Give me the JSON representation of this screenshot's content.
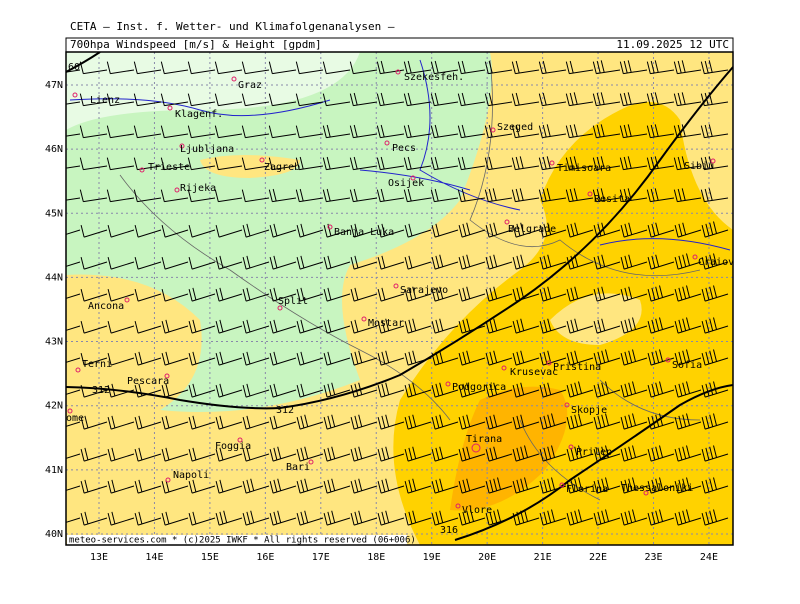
{
  "header": {
    "institute": "CETA — Inst. f. Wetter- und Klimafolgenanalysen —",
    "field": "700hpa Windspeed [m/s] & Height [gpdm]",
    "valid": "11.09.2025 12 UTC"
  },
  "lat_labels": [
    "47N",
    "46N",
    "45N",
    "44N",
    "43N",
    "42N",
    "41N",
    "40N"
  ],
  "lon_labels": [
    "13E",
    "14E",
    "15E",
    "16E",
    "17E",
    "18E",
    "19E",
    "20E",
    "21E",
    "22E",
    "23E",
    "24E"
  ],
  "contour_labels": [
    "60",
    "312",
    "312",
    "316"
  ],
  "cities": [
    "Lienz",
    "Graz",
    "Szekesfeh.",
    "Klagenf.",
    "Szeged",
    "Ljubljana",
    "Pecs",
    "Trieste",
    "Zagreb",
    "Timisoara",
    "Sibiu",
    "Osijek",
    "Rijeka",
    "Resita",
    "Banja Luka",
    "Belgrade",
    "Craiova",
    "Sarajevo",
    "Ancona",
    "Split",
    "Mostar",
    "Pristina",
    "Sofia",
    "Terni",
    "Krusevac",
    "Pescara",
    "Podgorica",
    "Skopje",
    "Rome",
    "Tirana",
    "Foggia",
    "Prilep",
    "Bari",
    "Napoli",
    "Florina",
    "Thessaloniki",
    "Vlore"
  ],
  "footer": "meteo-services.com * (c)2025 IWKF * All rights reserved (06+006)"
}
